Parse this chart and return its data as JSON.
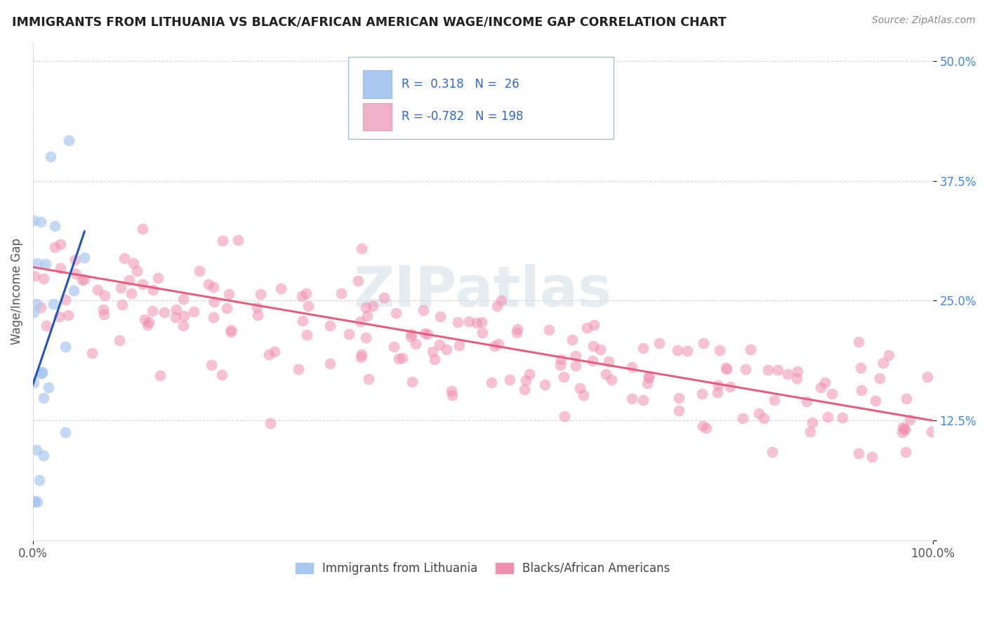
{
  "title": "IMMIGRANTS FROM LITHUANIA VS BLACK/AFRICAN AMERICAN WAGE/INCOME GAP CORRELATION CHART",
  "source": "Source: ZipAtlas.com",
  "ylabel": "Wage/Income Gap",
  "xlim": [
    0.0,
    1.0
  ],
  "ylim": [
    0.0,
    0.52
  ],
  "yticks": [
    0.0,
    0.125,
    0.25,
    0.375,
    0.5
  ],
  "ytick_labels": [
    "",
    "12.5%",
    "25.0%",
    "37.5%",
    "50.0%"
  ],
  "blue_color": "#a8c8f0",
  "blue_edge_color": "none",
  "pink_color": "#f090b0",
  "pink_edge_color": "none",
  "blue_line_color": "#2255bb",
  "pink_line_color": "#e06080",
  "watermark_color": "#ccdde8",
  "background_color": "#ffffff",
  "grid_color": "#cccccc",
  "title_color": "#222222",
  "source_color": "#888888",
  "ytick_color": "#4488dd",
  "xtick_color": "#555555",
  "ylabel_color": "#555555",
  "legend_text_color": "#3366cc",
  "legend_label_color": "#222222",
  "blue_R": 0.318,
  "blue_N": 26,
  "pink_R": -0.782,
  "pink_N": 198,
  "pink_line_x0": 0.0,
  "pink_line_y0": 0.285,
  "pink_line_x1": 1.0,
  "pink_line_y1": 0.125,
  "blue_line_solid_x0": 0.0,
  "blue_line_solid_y0": 0.215,
  "blue_line_solid_x1": 0.045,
  "blue_line_solid_y1": 0.345,
  "blue_line_dash_x0": 0.0,
  "blue_line_dash_y0": 0.215,
  "blue_line_dash_x1": 0.06,
  "blue_line_dash_y1": 0.52
}
